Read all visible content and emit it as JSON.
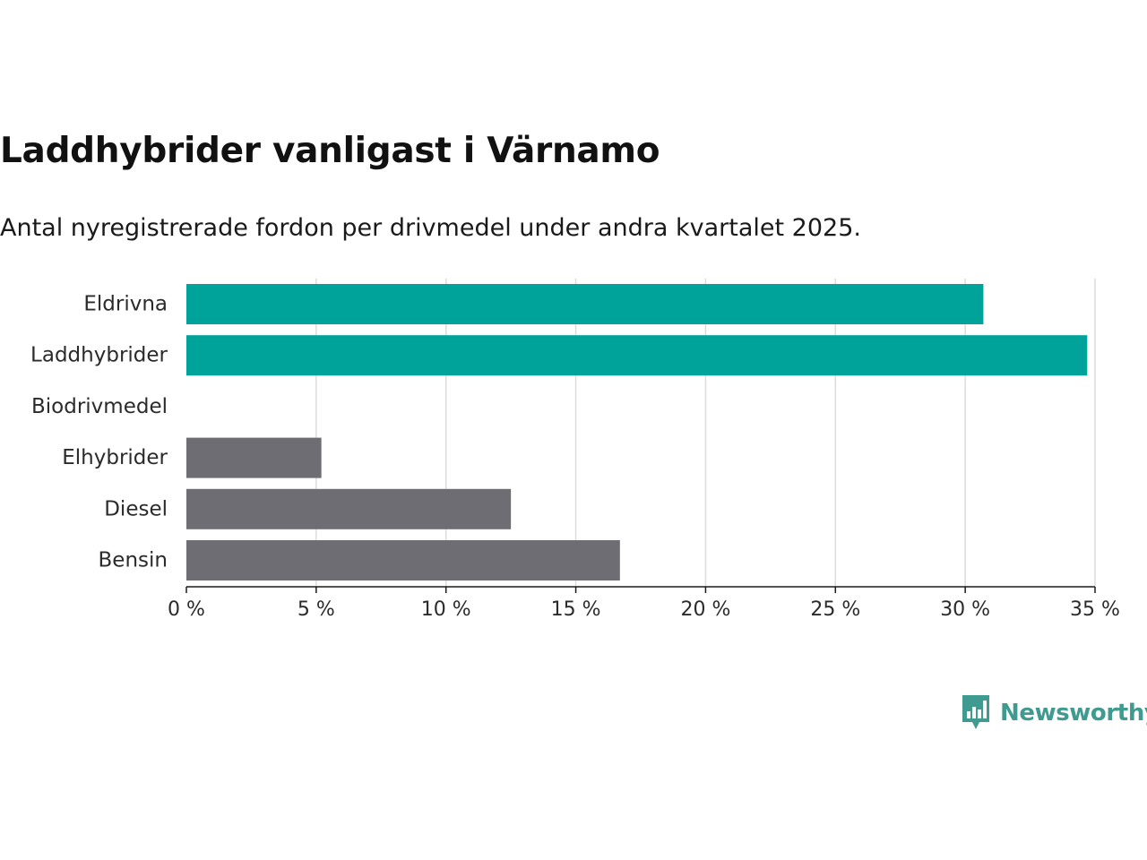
{
  "header": {
    "title": "Laddhybrider vanligast i Värnamo",
    "subtitle": "Antal nyregistrerade fordon per drivmedel under andra kvartalet 2025."
  },
  "brand": {
    "name": "Newsworthy",
    "icon": "newsworthy-logo-icon",
    "color": "#3f9a8f"
  },
  "chart_data": {
    "type": "bar",
    "orientation": "horizontal",
    "categories": [
      "Eldrivna",
      "Laddhybrider",
      "Biodrivmedel",
      "Elhybrider",
      "Diesel",
      "Bensin"
    ],
    "values": [
      30.7,
      34.7,
      0,
      5.2,
      12.5,
      16.7
    ],
    "colors": [
      "#00a39a",
      "#00a39a",
      "#6e6d73",
      "#6e6d73",
      "#6e6d73",
      "#6e6d73"
    ],
    "xlim": [
      0,
      35
    ],
    "ticks": [
      0,
      5,
      10,
      15,
      20,
      25,
      30,
      35
    ],
    "tick_labels": [
      "0 %",
      "5 %",
      "10 %",
      "15 %",
      "20 %",
      "25 %",
      "30 %",
      "35 %"
    ],
    "grid": true,
    "xlabel": "",
    "ylabel": ""
  }
}
